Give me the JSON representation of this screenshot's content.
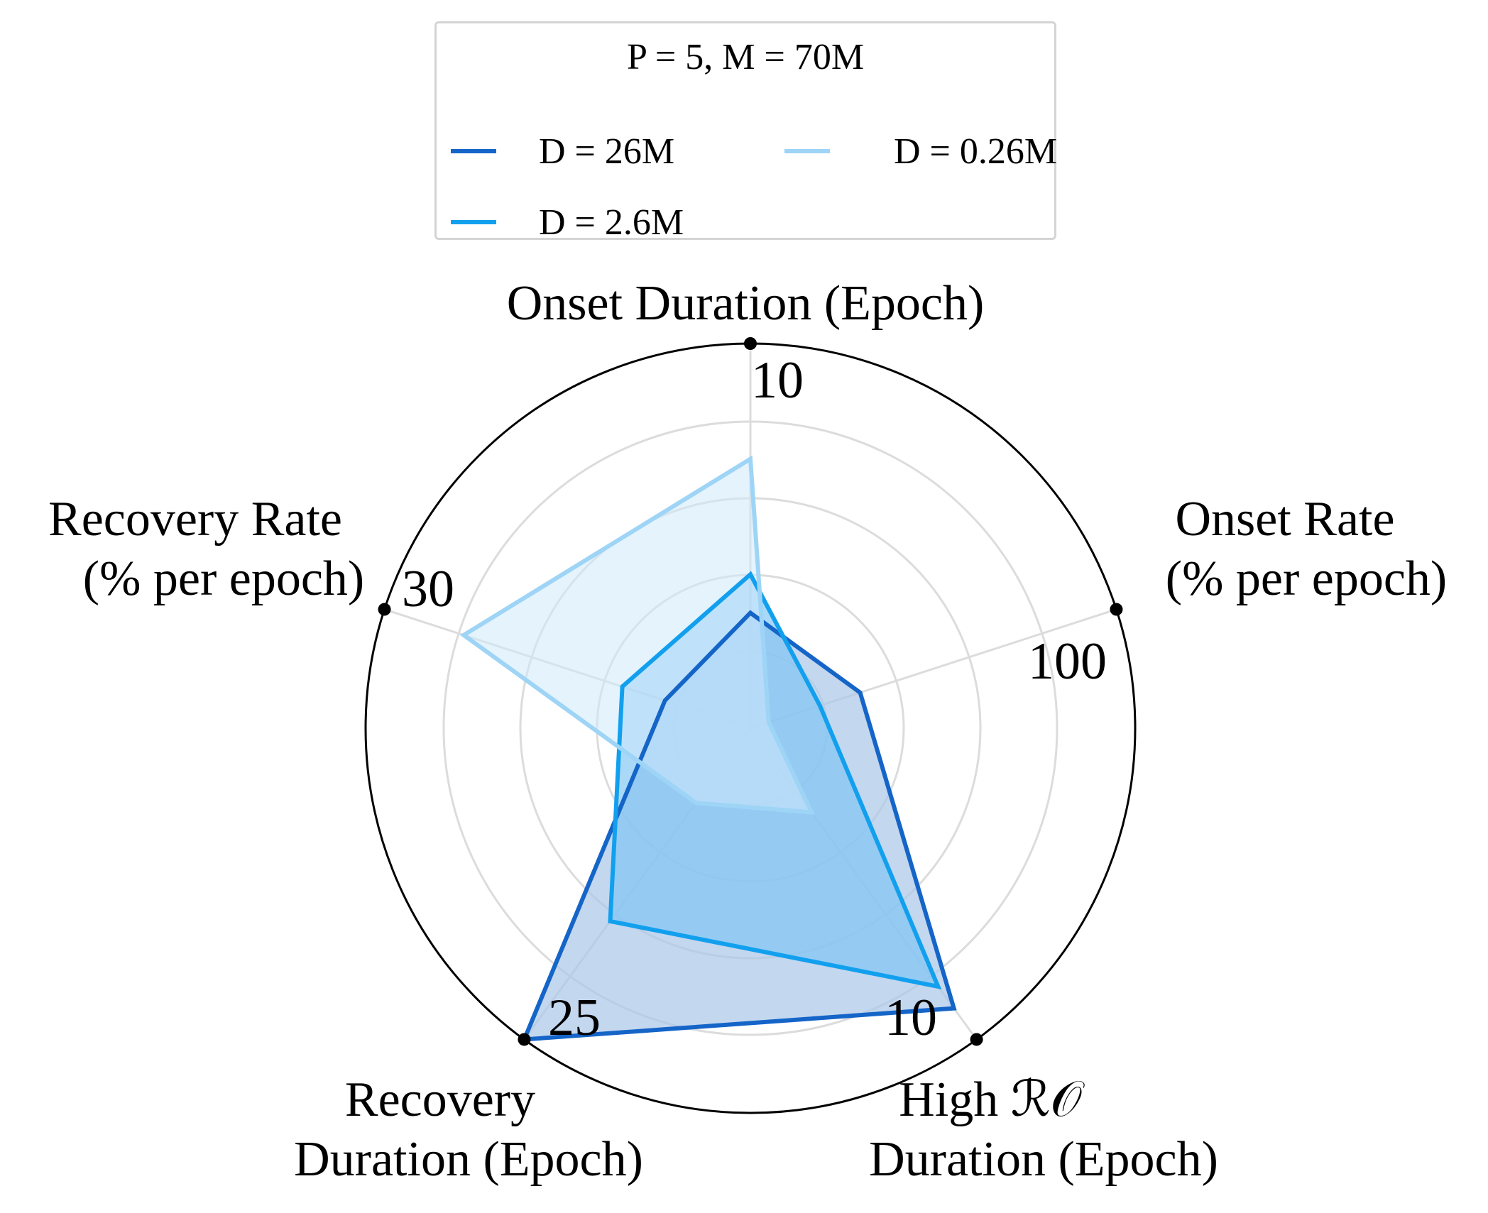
{
  "chart_data": {
    "type": "radar",
    "title": "P = 5, M = 70M",
    "axes": [
      {
        "label_lines": [
          "Onset Duration (Epoch)"
        ],
        "max": 10,
        "max_label": "10"
      },
      {
        "label_lines": [
          "Onset Rate",
          "(% per epoch)"
        ],
        "max": 100,
        "max_label": "100"
      },
      {
        "label_lines": [
          "High ℛ𝒪",
          "Duration (Epoch)"
        ],
        "max": 10,
        "max_label": "10"
      },
      {
        "label_lines": [
          "Recovery",
          "Duration (Epoch)"
        ],
        "max": 25,
        "max_label": "25"
      },
      {
        "label_lines": [
          "Recovery Rate",
          "(% per epoch)"
        ],
        "max": 30,
        "max_label": "30"
      }
    ],
    "series": [
      {
        "name": "D = 26M",
        "color": "#1565c8",
        "fill": "#a9c6e8",
        "fill_opacity": 0.7,
        "values": [
          3.0,
          30,
          9.0,
          25,
          7.0
        ]
      },
      {
        "name": "D = 2.6M",
        "color": "#12a0ee",
        "fill": "#7cc4f4",
        "fill_opacity": 0.65,
        "values": [
          4.0,
          19,
          8.3,
          15.5,
          10.5
        ]
      },
      {
        "name": "D = 0.26M",
        "color": "#9ed4f6",
        "fill": "#cfe9fb",
        "fill_opacity": 0.55,
        "values": [
          7.0,
          5,
          2.7,
          6.0,
          23.5
        ]
      }
    ],
    "rings": 5,
    "legend": {
      "position": "top-center",
      "columns": 2
    }
  }
}
